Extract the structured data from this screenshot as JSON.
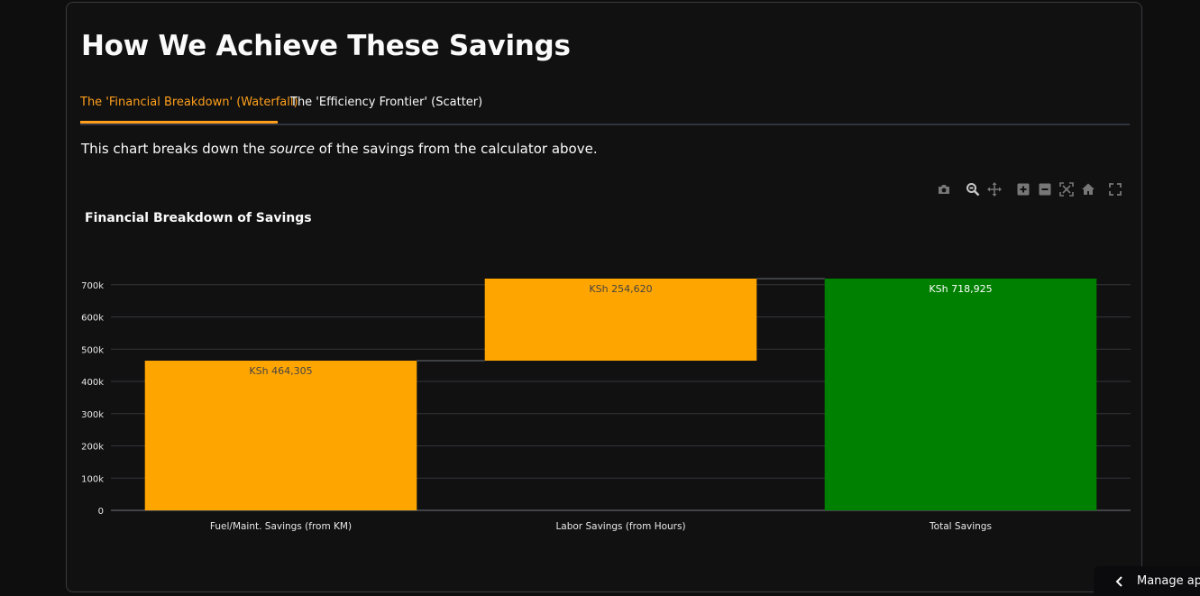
{
  "page": {
    "title": "How We Achieve These Savings",
    "description": {
      "before": "This chart breaks down the ",
      "emphasis": "source",
      "after": " of the savings from the calculator above."
    }
  },
  "tabs": [
    {
      "label": "The 'Financial Breakdown' (Waterfall)",
      "active": true
    },
    {
      "label": "The 'Efficiency Frontier' (Scatter)",
      "active": false
    }
  ],
  "modebar": [
    "camera-icon",
    "zoom-icon",
    "pan-icon",
    "zoom-in-icon",
    "zoom-out-icon",
    "autoscale-icon",
    "reset-axes-icon",
    "fullscreen-icon"
  ],
  "manage_app": {
    "label": "Manage app"
  },
  "colors": {
    "accent": "#ff9f1c",
    "increase": "#ffa500",
    "total": "#008000",
    "background": "#111111"
  },
  "chart_data": {
    "type": "bar",
    "subtype": "waterfall",
    "title": "Financial Breakdown of Savings",
    "categories": [
      "Fuel/Maint. Savings (from KM)",
      "Labor Savings (from Hours)",
      "Total Savings"
    ],
    "values": [
      464305,
      254620,
      718925
    ],
    "measures": [
      "relative",
      "relative",
      "total"
    ],
    "labels": [
      "KSh 464,305",
      "KSh 254,620",
      "KSh 718,925"
    ],
    "bar_colors": [
      "#ffa500",
      "#ffa500",
      "#008000"
    ],
    "ylim": [
      0,
      718925
    ],
    "yticks": [
      0,
      100000,
      200000,
      300000,
      400000,
      500000,
      600000,
      700000
    ],
    "yticklabels": [
      "0",
      "100k",
      "200k",
      "300k",
      "400k",
      "500k",
      "600k",
      "700k"
    ],
    "xlabel": "",
    "ylabel": "",
    "grid": true,
    "connectors": true
  }
}
